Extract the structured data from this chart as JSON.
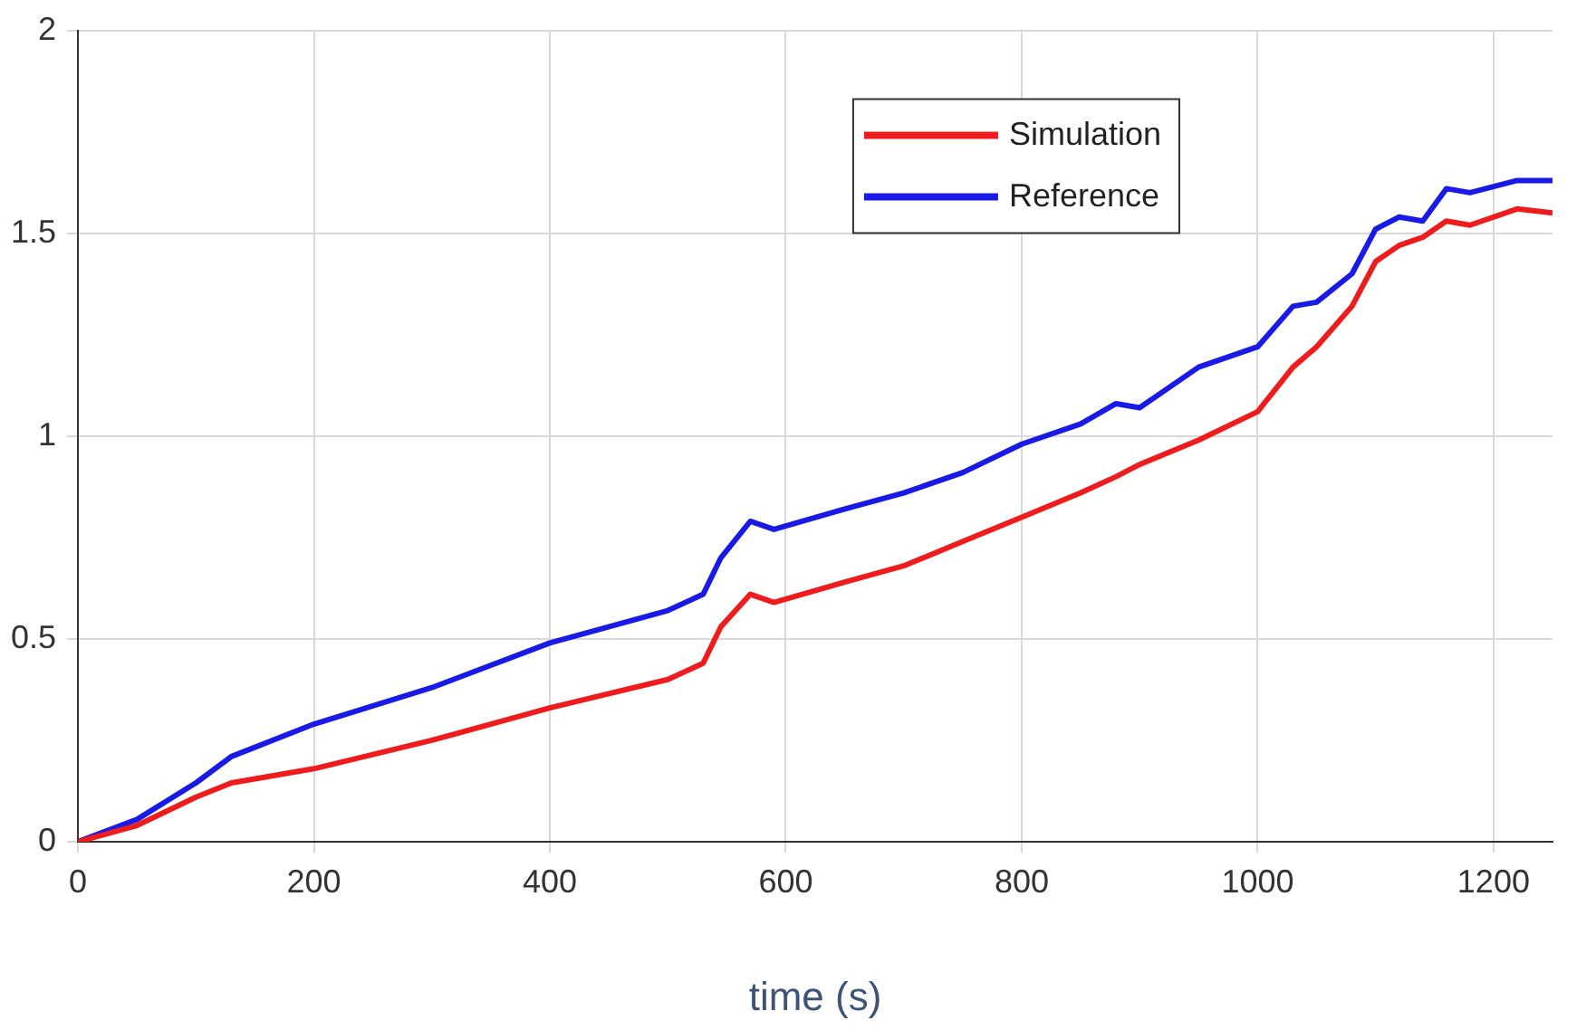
{
  "chart_data": {
    "type": "line",
    "xlabel": "time (s)",
    "x": [
      0,
      50,
      100,
      130,
      200,
      300,
      400,
      500,
      530,
      545,
      570,
      590,
      650,
      700,
      750,
      800,
      850,
      880,
      900,
      950,
      1000,
      1030,
      1050,
      1080,
      1100,
      1120,
      1140,
      1160,
      1180,
      1220,
      1250
    ],
    "series": [
      {
        "name": "Simulation",
        "color": "#ee1c1c",
        "values": [
          0,
          0.04,
          0.11,
          0.145,
          0.18,
          0.25,
          0.33,
          0.4,
          0.44,
          0.53,
          0.61,
          0.59,
          0.64,
          0.68,
          0.74,
          0.8,
          0.86,
          0.9,
          0.93,
          0.99,
          1.06,
          1.17,
          1.22,
          1.32,
          1.43,
          1.47,
          1.49,
          1.53,
          1.52,
          1.56,
          1.55
        ]
      },
      {
        "name": "Reference",
        "color": "#1a1ae6",
        "values": [
          0,
          0.055,
          0.145,
          0.21,
          0.29,
          0.38,
          0.49,
          0.57,
          0.61,
          0.7,
          0.79,
          0.77,
          0.82,
          0.86,
          0.91,
          0.98,
          1.03,
          1.08,
          1.07,
          1.17,
          1.22,
          1.32,
          1.33,
          1.4,
          1.51,
          1.54,
          1.53,
          1.61,
          1.6,
          1.63,
          1.63
        ]
      }
    ],
    "xlim": [
      0,
      1250
    ],
    "xticks": [
      0,
      200,
      400,
      600,
      800,
      1000,
      1200
    ],
    "ylim": [
      0,
      2
    ],
    "yticks": [
      0,
      0.5,
      1,
      1.5,
      2
    ],
    "grid": true,
    "legend": "top right",
    "marker": "none",
    "line_style": "solid"
  }
}
